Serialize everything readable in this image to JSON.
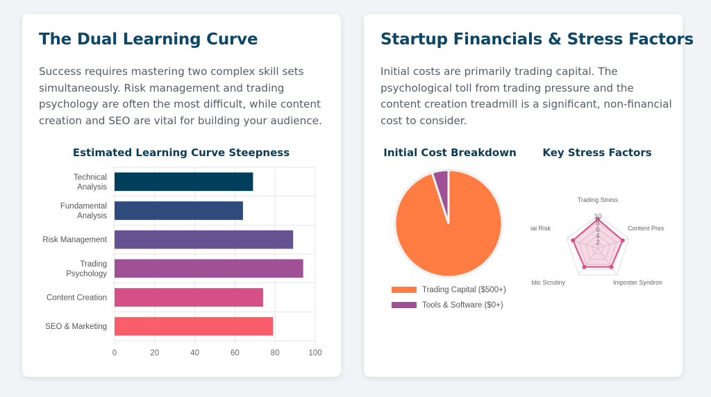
{
  "left_card": {
    "title": "The Dual Learning Curve",
    "body": "Success requires mastering two complex skill sets simultaneously. Risk management and trading psychology are often the most difficult, while content creation and SEO are vital for building your audience."
  },
  "right_card": {
    "title": "Startup Financials & Stress Factors",
    "body": "Initial costs are primarily trading capital. The psychological toll from trading pressure and the content creation treadmill is a significant, non-financial cost to consider."
  },
  "chart_data": [
    {
      "type": "bar",
      "orientation": "horizontal",
      "title": "Estimated Learning Curve Steepness",
      "categories": [
        [
          "Technical",
          "Analysis"
        ],
        [
          "Fundamental",
          "Analysis"
        ],
        [
          "Risk Management"
        ],
        [
          "Trading",
          "Psychology"
        ],
        [
          "Content Creation"
        ],
        [
          "SEO & Marketing"
        ]
      ],
      "values": [
        69,
        64,
        89,
        94,
        74,
        79
      ],
      "colors": [
        "#003f5c",
        "#2f4b7c",
        "#665191",
        "#a05195",
        "#d45087",
        "#f95d6a"
      ],
      "xlim": [
        0,
        100
      ],
      "xticks": [
        0,
        20,
        40,
        60,
        80,
        100
      ],
      "grid": true
    },
    {
      "type": "pie",
      "title": "Initial Cost Breakdown",
      "labels": [
        "Trading Capital ($500+)",
        "Tools & Software ($0+)"
      ],
      "values": [
        95,
        5
      ],
      "colors": [
        "#ff7c43",
        "#a05195"
      ],
      "legend_position": "bottom"
    },
    {
      "type": "radar",
      "title": "Key Stress Factors",
      "axes": [
        "Trading Stress",
        "Content Pres",
        "Imposter Syndron",
        "blic Scrutiny",
        "ial Risk"
      ],
      "values": [
        9,
        8,
        7,
        7,
        8
      ],
      "rmax": 10,
      "ticks": [
        "10",
        "8",
        "6",
        "4",
        "2"
      ],
      "color": "#d45087"
    }
  ]
}
